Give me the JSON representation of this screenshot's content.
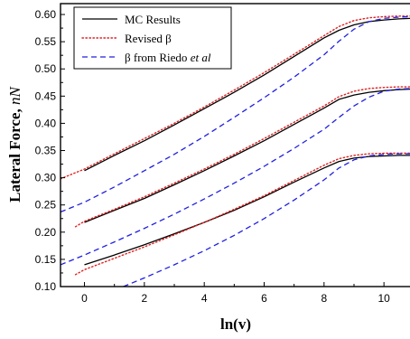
{
  "chart_data": {
    "type": "line",
    "xlabel": "ln(v)",
    "ylabel_bold": "Lateral Force, ",
    "ylabel_italic": "nN",
    "xlim": [
      -0.8,
      10.9
    ],
    "ylim": [
      0.1,
      0.62
    ],
    "x_ticks": [
      0,
      2,
      4,
      6,
      8,
      10
    ],
    "x_tick_labels": [
      "0",
      "2",
      "4",
      "6",
      "8",
      "10"
    ],
    "y_ticks": [
      0.1,
      0.15,
      0.2,
      0.25,
      0.3,
      0.35,
      0.4,
      0.45,
      0.5,
      0.55,
      0.6
    ],
    "y_tick_labels": [
      "0.10",
      "0.15",
      "0.20",
      "0.25",
      "0.30",
      "0.35",
      "0.40",
      "0.45",
      "0.50",
      "0.55",
      "0.60"
    ],
    "grid": false,
    "legend_position": "top-left",
    "legend": [
      {
        "series": "mc",
        "text": "MC Results",
        "italic_suffix": ""
      },
      {
        "series": "revised",
        "text": "Revised β",
        "italic_suffix": ""
      },
      {
        "series": "riedo",
        "text": "β from Riedo ",
        "italic_suffix": "et al"
      }
    ],
    "styles": {
      "mc": {
        "color": "#000000",
        "dash": "none"
      },
      "revised": {
        "color": "#e02020",
        "dash": "dotted"
      },
      "riedo": {
        "color": "#2020e0",
        "dash": "dashed"
      }
    },
    "series": [
      {
        "style": "mc",
        "group": "top",
        "x": [
          0,
          1,
          2,
          3,
          4,
          5,
          6,
          7,
          8,
          8.5,
          9,
          9.5,
          10,
          10.5,
          10.9
        ],
        "y": [
          0.313,
          0.341,
          0.368,
          0.397,
          0.427,
          0.457,
          0.489,
          0.523,
          0.557,
          0.571,
          0.581,
          0.587,
          0.59,
          0.592,
          0.593
        ]
      },
      {
        "style": "revised",
        "group": "top",
        "x": [
          -0.8,
          0,
          1,
          2,
          3,
          4,
          5,
          6,
          7,
          8,
          8.5,
          9,
          9.5,
          10,
          10.5,
          10.9
        ],
        "y": [
          0.298,
          0.316,
          0.344,
          0.372,
          0.4,
          0.43,
          0.461,
          0.493,
          0.527,
          0.561,
          0.578,
          0.589,
          0.594,
          0.596,
          0.597,
          0.597
        ]
      },
      {
        "style": "riedo",
        "group": "top",
        "x": [
          -0.8,
          0,
          1,
          2,
          3,
          4,
          5,
          6,
          7,
          8,
          8.5,
          9,
          9.5,
          10,
          10.5,
          10.9
        ],
        "y": [
          0.237,
          0.255,
          0.283,
          0.313,
          0.343,
          0.376,
          0.411,
          0.447,
          0.485,
          0.526,
          0.551,
          0.573,
          0.587,
          0.593,
          0.595,
          0.596
        ]
      },
      {
        "style": "mc",
        "group": "middle",
        "x": [
          0,
          1,
          2,
          3,
          4,
          5,
          6,
          7,
          8,
          8.5,
          9,
          9.5,
          10,
          10.5,
          10.9
        ],
        "y": [
          0.218,
          0.24,
          0.262,
          0.287,
          0.313,
          0.34,
          0.368,
          0.398,
          0.428,
          0.444,
          0.452,
          0.457,
          0.46,
          0.462,
          0.463
        ]
      },
      {
        "style": "revised",
        "group": "middle",
        "x": [
          -0.3,
          0,
          1,
          2,
          3,
          4,
          5,
          6,
          7,
          8,
          8.5,
          9,
          9.5,
          10,
          10.5,
          10.9
        ],
        "y": [
          0.21,
          0.22,
          0.242,
          0.265,
          0.29,
          0.316,
          0.343,
          0.372,
          0.402,
          0.432,
          0.449,
          0.459,
          0.464,
          0.466,
          0.467,
          0.467
        ]
      },
      {
        "style": "riedo",
        "group": "middle",
        "x": [
          -0.8,
          0,
          1,
          2,
          3,
          4,
          5,
          6,
          7,
          8,
          8.5,
          9,
          9.5,
          10,
          10.5,
          10.9
        ],
        "y": [
          0.14,
          0.158,
          0.182,
          0.207,
          0.233,
          0.261,
          0.29,
          0.321,
          0.354,
          0.389,
          0.411,
          0.432,
          0.448,
          0.459,
          0.463,
          0.464
        ]
      },
      {
        "style": "mc",
        "group": "bottom",
        "x": [
          0,
          1,
          2,
          3,
          4,
          5,
          6,
          7,
          8,
          8.5,
          9,
          9.5,
          10,
          10.5,
          10.9
        ],
        "y": [
          0.14,
          0.158,
          0.177,
          0.197,
          0.218,
          0.24,
          0.265,
          0.292,
          0.318,
          0.33,
          0.336,
          0.339,
          0.34,
          0.341,
          0.341
        ]
      },
      {
        "style": "revised",
        "group": "bottom",
        "x": [
          -0.3,
          0,
          1,
          2,
          3,
          4,
          5,
          6,
          7,
          8,
          8.5,
          9,
          9.5,
          10,
          10.5,
          10.9
        ],
        "y": [
          0.122,
          0.131,
          0.152,
          0.173,
          0.195,
          0.218,
          0.242,
          0.267,
          0.295,
          0.323,
          0.335,
          0.341,
          0.344,
          0.345,
          0.345,
          0.345
        ]
      },
      {
        "style": "riedo",
        "group": "bottom",
        "x": [
          1.3,
          2,
          3,
          4,
          5,
          6,
          7,
          8,
          8.5,
          9,
          9.5,
          10,
          10.5,
          10.9
        ],
        "y": [
          0.1,
          0.116,
          0.14,
          0.166,
          0.194,
          0.225,
          0.259,
          0.296,
          0.318,
          0.333,
          0.34,
          0.343,
          0.344,
          0.344
        ]
      }
    ]
  }
}
